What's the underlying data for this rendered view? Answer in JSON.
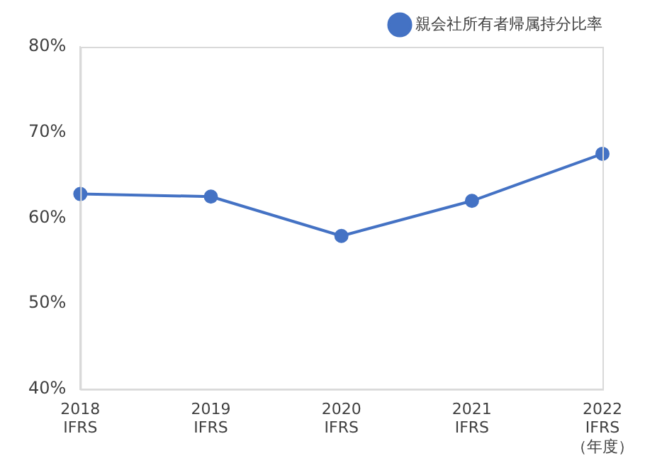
{
  "chart_data": {
    "type": "line",
    "categories": [
      "2018\nIFRS",
      "2019\nIFRS",
      "2020\nIFRS",
      "2021\nIFRS",
      "2022\nIFRS\n（年度）"
    ],
    "series": [
      {
        "name": "親会社所有者帰属持分比率",
        "color": "#4472c4",
        "values": [
          62.8,
          62.5,
          57.9,
          62.0,
          67.5
        ]
      }
    ],
    "ylim": [
      40,
      80
    ],
    "yticks": [
      {
        "value": 40,
        "label": "40%"
      },
      {
        "value": 50,
        "label": "50%"
      },
      {
        "value": 60,
        "label": "60%"
      },
      {
        "value": 70,
        "label": "70%"
      },
      {
        "value": 80,
        "label": "80%"
      }
    ],
    "grid": false,
    "legend": "top right",
    "marker": "circle",
    "line_style": "solid"
  }
}
